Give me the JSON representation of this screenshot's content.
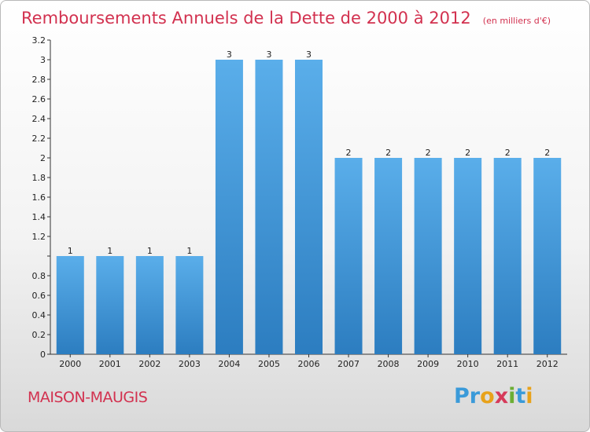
{
  "title": "Remboursements Annuels de la Dette de 2000 à 2012",
  "subtitle": "(en milliers d'€)",
  "town": "MAISON-MAUGIS",
  "logo": {
    "text": "Proxiti",
    "letters": [
      {
        "ch": "P",
        "color": "#3a9ad9"
      },
      {
        "ch": "r",
        "color": "#3a9ad9"
      },
      {
        "ch": "o",
        "color": "#e8a21a"
      },
      {
        "ch": "x",
        "color": "#d63a5a"
      },
      {
        "ch": "i",
        "color": "#6cae34"
      },
      {
        "ch": "t",
        "color": "#3a9ad9"
      },
      {
        "ch": "i",
        "color": "#e8a21a"
      }
    ]
  },
  "colors": {
    "bar_light": "#5aaeea",
    "bar_dark": "#2c7dc0",
    "title": "#d2314f"
  },
  "chart_data": {
    "type": "bar",
    "categories": [
      "2000",
      "2001",
      "2002",
      "2003",
      "2004",
      "2005",
      "2006",
      "2007",
      "2008",
      "2009",
      "2010",
      "2011",
      "2012"
    ],
    "values": [
      1,
      1,
      1,
      1,
      3,
      3,
      3,
      2,
      2,
      2,
      2,
      2,
      2
    ],
    "value_labels": [
      "1",
      "1",
      "1",
      "1",
      "3",
      "3",
      "3",
      "2",
      "2",
      "2",
      "2",
      "2",
      "2"
    ],
    "yticks": [
      0,
      0.2,
      0.4,
      0.6,
      0.8,
      1,
      1.2,
      1.4,
      1.6,
      1.8,
      2,
      2.2,
      2.4,
      2.6,
      2.8,
      3,
      3.2
    ],
    "ytick_labels": [
      "0",
      "0.2",
      "0.4",
      "0.6",
      "0.8",
      "",
      "1.2",
      "1.4",
      "1.6",
      "1.8",
      "2",
      "2.2",
      "2.4",
      "2.6",
      "2.8",
      "3",
      "3.2"
    ],
    "ylim": [
      0,
      3.2
    ],
    "grid": false
  }
}
